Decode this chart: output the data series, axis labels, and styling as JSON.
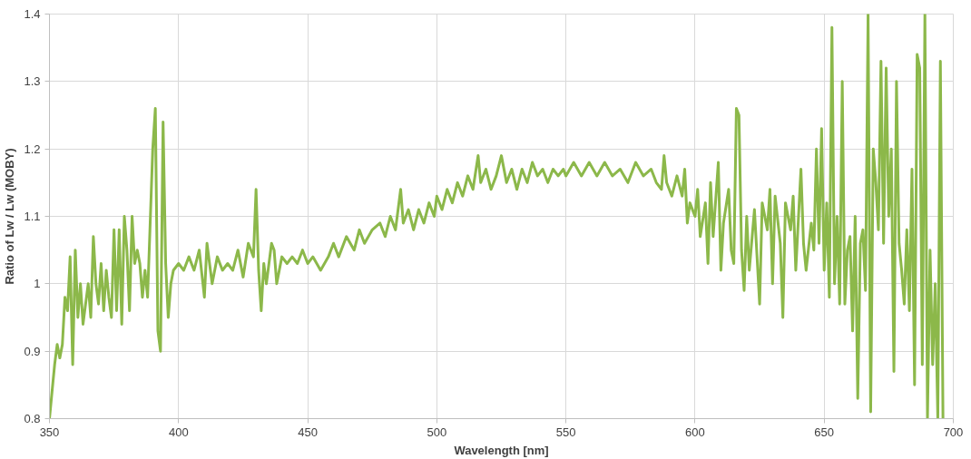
{
  "chart_data": {
    "type": "line",
    "xlabel": "Wavelength [nm]",
    "ylabel": "Ratio of Lw / Lw (MOBY)",
    "xlim": [
      350,
      700
    ],
    "ylim": [
      0.8,
      1.4
    ],
    "xticks": [
      350,
      400,
      450,
      500,
      550,
      600,
      650,
      700
    ],
    "yticks": [
      {
        "value": 0.8,
        "label": "0.8"
      },
      {
        "value": 0.9,
        "label": "0.9"
      },
      {
        "value": 1.0,
        "label": "1"
      },
      {
        "value": 1.1,
        "label": "1.1"
      },
      {
        "value": 1.2,
        "label": "1.2"
      },
      {
        "value": 1.3,
        "label": "1.3"
      },
      {
        "value": 1.4,
        "label": "1.4"
      }
    ],
    "grid": true,
    "marker": "none",
    "line_style": "solid",
    "series": [
      {
        "color": "#8cb84a",
        "x": [
          350,
          351,
          352,
          353,
          354,
          355,
          356,
          357,
          358,
          359,
          360,
          361,
          362,
          363,
          365,
          366,
          367,
          368,
          369,
          370,
          371,
          372,
          373,
          374,
          375,
          376,
          377,
          378,
          379,
          380,
          381,
          382,
          383,
          384,
          385,
          386,
          387,
          388,
          390,
          391,
          392,
          393,
          394,
          395,
          396,
          397,
          398,
          400,
          402,
          404,
          406,
          408,
          410,
          411,
          413,
          415,
          417,
          419,
          421,
          423,
          425,
          427,
          429,
          430,
          431,
          432,
          433,
          434,
          436,
          437,
          438,
          440,
          442,
          444,
          446,
          448,
          450,
          452,
          455,
          458,
          460,
          462,
          465,
          468,
          470,
          472,
          475,
          478,
          480,
          482,
          484,
          486,
          487,
          489,
          491,
          493,
          495,
          497,
          499,
          500,
          502,
          504,
          506,
          508,
          510,
          512,
          514,
          516,
          517,
          519,
          521,
          523,
          525,
          527,
          529,
          531,
          533,
          535,
          537,
          539,
          541,
          543,
          545,
          547,
          549,
          550,
          553,
          556,
          559,
          562,
          565,
          568,
          571,
          574,
          577,
          580,
          583,
          585,
          587,
          588,
          589,
          591,
          593,
          595,
          596,
          597,
          598,
          600,
          601,
          602,
          604,
          605,
          606,
          607,
          609,
          610,
          611,
          613,
          614,
          615,
          616,
          617,
          618,
          619,
          620,
          621,
          623,
          625,
          626,
          628,
          629,
          630,
          631,
          633,
          634,
          635,
          637,
          638,
          639,
          641,
          642,
          643,
          645,
          646,
          647,
          648,
          649,
          650,
          651,
          652,
          653,
          654,
          655,
          656,
          657,
          658,
          659,
          660,
          661,
          662,
          663,
          664,
          665,
          666,
          667,
          668,
          669,
          670,
          671,
          672,
          673,
          674,
          675,
          676,
          677,
          678,
          679,
          680,
          681,
          682,
          683,
          684,
          685,
          686,
          687,
          688,
          689,
          690,
          691,
          692,
          693,
          694,
          695,
          696
        ],
        "values": [
          0.8,
          0.84,
          0.88,
          0.91,
          0.89,
          0.91,
          0.98,
          0.96,
          1.04,
          0.88,
          1.05,
          0.95,
          1.0,
          0.94,
          1.0,
          0.95,
          1.07,
          1.0,
          0.97,
          1.03,
          0.96,
          1.02,
          0.98,
          0.95,
          1.08,
          0.96,
          1.08,
          0.94,
          1.1,
          1.05,
          0.96,
          1.1,
          1.03,
          1.05,
          1.03,
          0.98,
          1.02,
          0.98,
          1.2,
          1.26,
          0.93,
          0.9,
          1.24,
          1.03,
          0.95,
          1.0,
          1.02,
          1.03,
          1.02,
          1.04,
          1.02,
          1.05,
          0.98,
          1.06,
          1.0,
          1.04,
          1.02,
          1.03,
          1.02,
          1.05,
          1.01,
          1.06,
          1.04,
          1.14,
          1.02,
          0.96,
          1.03,
          1.0,
          1.06,
          1.05,
          1.0,
          1.04,
          1.03,
          1.04,
          1.03,
          1.05,
          1.03,
          1.04,
          1.02,
          1.04,
          1.06,
          1.04,
          1.07,
          1.05,
          1.08,
          1.06,
          1.08,
          1.09,
          1.07,
          1.1,
          1.08,
          1.14,
          1.09,
          1.11,
          1.08,
          1.11,
          1.09,
          1.12,
          1.1,
          1.13,
          1.11,
          1.14,
          1.12,
          1.15,
          1.13,
          1.16,
          1.14,
          1.19,
          1.15,
          1.17,
          1.14,
          1.16,
          1.19,
          1.15,
          1.17,
          1.14,
          1.17,
          1.15,
          1.18,
          1.16,
          1.17,
          1.15,
          1.17,
          1.16,
          1.17,
          1.16,
          1.18,
          1.16,
          1.18,
          1.16,
          1.18,
          1.16,
          1.17,
          1.15,
          1.18,
          1.16,
          1.17,
          1.15,
          1.14,
          1.19,
          1.15,
          1.13,
          1.16,
          1.13,
          1.17,
          1.09,
          1.12,
          1.1,
          1.14,
          1.07,
          1.12,
          1.03,
          1.15,
          1.07,
          1.18,
          1.02,
          1.09,
          1.14,
          1.05,
          1.03,
          1.26,
          1.25,
          1.05,
          0.99,
          1.1,
          1.02,
          1.11,
          0.97,
          1.12,
          1.08,
          1.14,
          1.0,
          1.13,
          1.06,
          0.95,
          1.12,
          1.08,
          1.13,
          1.02,
          1.17,
          1.06,
          1.02,
          1.09,
          1.05,
          1.2,
          1.06,
          1.23,
          1.02,
          1.12,
          0.98,
          1.38,
          1.0,
          1.1,
          0.97,
          1.3,
          0.97,
          1.05,
          1.07,
          0.93,
          1.1,
          0.83,
          1.06,
          1.08,
          0.99,
          1.4,
          0.81,
          1.2,
          1.15,
          1.08,
          1.33,
          1.06,
          1.32,
          1.1,
          1.2,
          0.87,
          1.3,
          1.06,
          1.02,
          0.97,
          1.08,
          0.96,
          1.17,
          0.85,
          1.34,
          1.32,
          0.88,
          1.4,
          0.8,
          1.05,
          0.88,
          1.0,
          0.8,
          1.33,
          0.8
        ]
      }
    ]
  }
}
